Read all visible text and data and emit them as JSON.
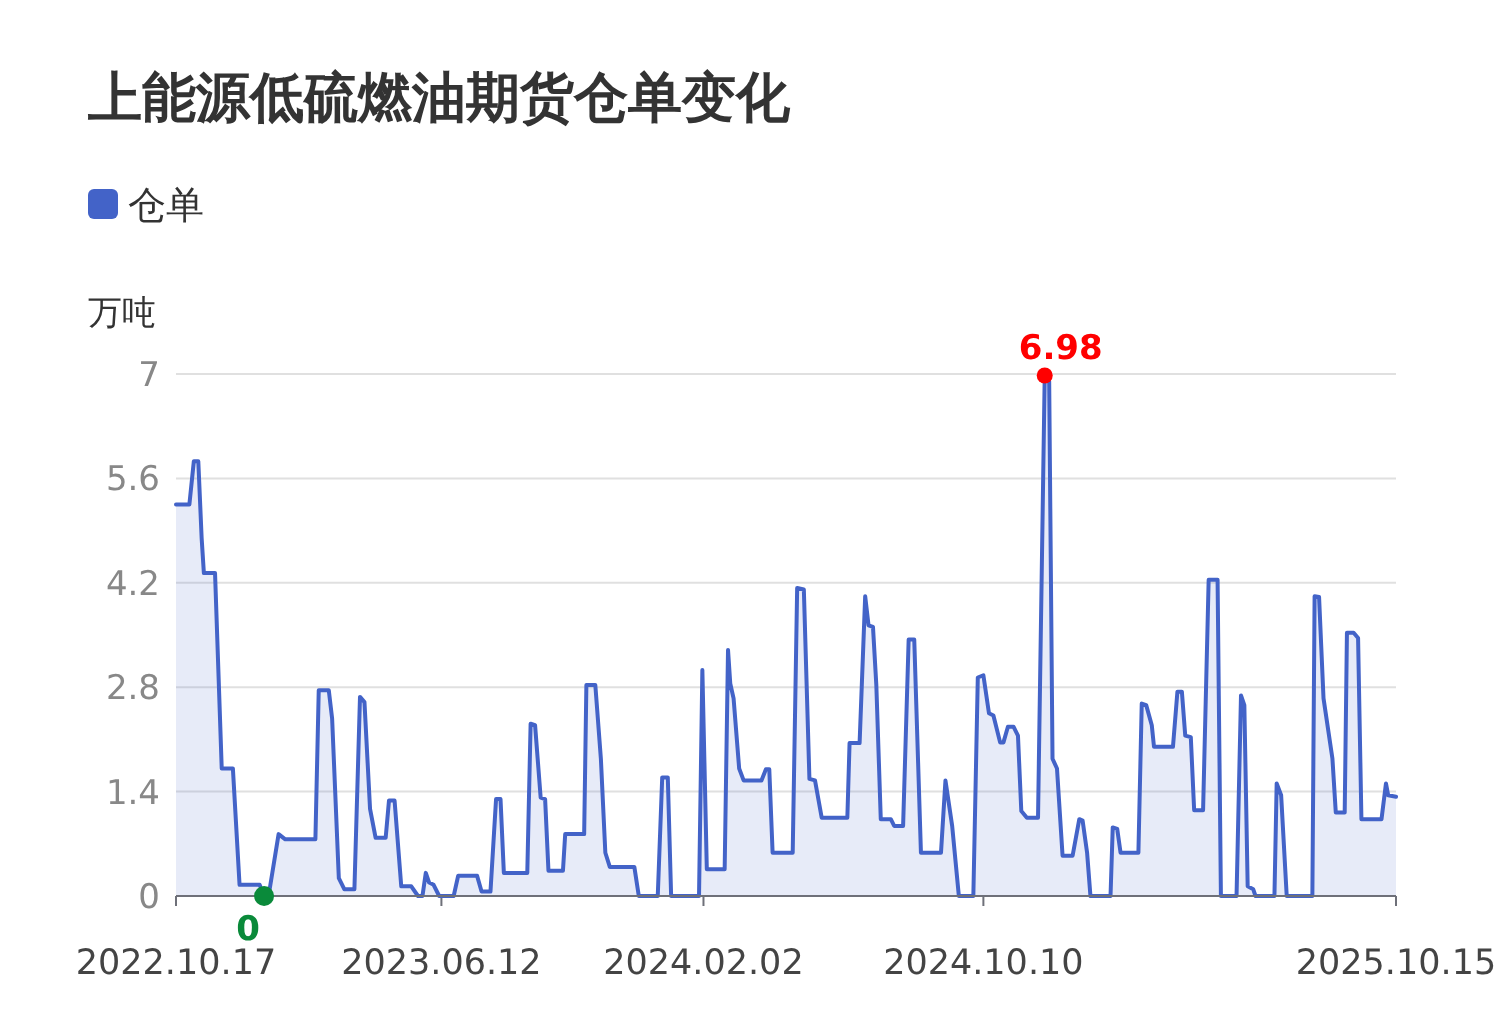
{
  "chart_data": {
    "type": "area",
    "title": "上能源低硫燃油期货仓单变化",
    "ylabel": "万吨",
    "x": [
      "2022-10-17",
      "2022-10-29",
      "2022-11-02",
      "2022-11-06",
      "2022-11-09",
      "2022-11-11",
      "2022-11-21",
      "2022-11-27",
      "2022-12-07",
      "2022-12-13",
      "2022-12-31",
      "2023-01-04",
      "2023-01-08",
      "2023-01-17",
      "2023-01-23",
      "2023-02-19",
      "2023-02-22",
      "2023-03-03",
      "2023-03-06",
      "2023-03-12",
      "2023-03-17",
      "2023-03-26",
      "2023-03-31",
      "2023-04-04",
      "2023-04-09",
      "2023-04-14",
      "2023-04-23",
      "2023-04-26",
      "2023-05-01",
      "2023-05-07",
      "2023-05-16",
      "2023-05-22",
      "2023-05-26",
      "2023-05-29",
      "2023-06-01",
      "2023-06-05",
      "2023-06-10",
      "2023-06-23",
      "2023-06-27",
      "2023-07-14",
      "2023-07-18",
      "2023-07-26",
      "2023-07-31",
      "2023-08-04",
      "2023-08-07",
      "2023-08-28",
      "2023-08-31",
      "2023-09-04",
      "2023-09-09",
      "2023-09-13",
      "2023-09-16",
      "2023-09-29",
      "2023-10-01",
      "2023-10-18",
      "2023-10-20",
      "2023-10-28",
      "2023-11-02",
      "2023-11-06",
      "2023-11-10",
      "2023-12-02",
      "2023-12-06",
      "2023-12-23",
      "2023-12-27",
      "2024-01-01",
      "2024-01-04",
      "2024-01-29",
      "2024-02-01",
      "2024-02-05",
      "2024-02-21",
      "2024-02-24",
      "2024-02-26",
      "2024-02-29",
      "2024-03-05",
      "2024-03-09",
      "2024-03-25",
      "2024-03-29",
      "2024-04-01",
      "2024-04-04",
      "2024-04-22",
      "2024-04-26",
      "2024-05-02",
      "2024-05-07",
      "2024-05-12",
      "2024-05-18",
      "2024-06-10",
      "2024-06-12",
      "2024-06-21",
      "2024-06-26",
      "2024-06-29",
      "2024-07-03",
      "2024-07-06",
      "2024-07-10",
      "2024-07-19",
      "2024-07-22",
      "2024-07-30",
      "2024-08-04",
      "2024-08-09",
      "2024-08-15",
      "2024-09-02",
      "2024-09-06",
      "2024-09-12",
      "2024-09-18",
      "2024-10-01",
      "2024-10-05",
      "2024-10-10",
      "2024-10-15",
      "2024-10-19",
      "2024-10-25",
      "2024-10-28",
      "2024-11-01",
      "2024-11-06",
      "2024-11-10",
      "2024-11-13",
      "2024-11-18",
      "2024-11-28",
      "2024-12-04",
      "2024-12-08",
      "2024-12-11",
      "2024-12-15",
      "2024-12-20",
      "2024-12-29",
      "2025-01-04",
      "2025-01-07",
      "2025-01-11",
      "2025-01-14",
      "2025-02-01",
      "2025-02-03",
      "2025-02-07",
      "2025-02-10",
      "2025-02-26",
      "2025-03-01",
      "2025-03-05",
      "2025-03-10",
      "2025-03-12",
      "2025-03-29",
      "2025-04-02",
      "2025-04-06",
      "2025-04-09",
      "2025-04-14",
      "2025-04-17",
      "2025-04-25",
      "2025-04-30",
      "2025-05-08",
      "2025-05-11",
      "2025-05-25",
      "2025-05-29",
      "2025-06-01",
      "2025-06-04",
      "2025-06-09",
      "2025-06-11",
      "2025-06-28",
      "2025-06-30",
      "2025-07-04",
      "2025-07-09",
      "2025-08-01",
      "2025-08-03",
      "2025-08-07",
      "2025-08-11",
      "2025-08-19",
      "2025-08-22",
      "2025-08-30",
      "2025-09-01",
      "2025-09-07",
      "2025-09-11",
      "2025-09-14",
      "2025-10-02",
      "2025-10-06",
      "2025-10-08",
      "2025-10-15"
    ],
    "series": [
      {
        "name": "仓单",
        "color": "#4363c8",
        "values": [
          5.25,
          5.25,
          5.83,
          5.83,
          4.8,
          4.33,
          4.33,
          1.71,
          1.71,
          0.15,
          0.15,
          0,
          0,
          0.83,
          0.76,
          0.76,
          2.76,
          2.76,
          2.38,
          0.24,
          0.09,
          0.09,
          2.67,
          2.6,
          1.17,
          0.78,
          0.78,
          1.28,
          1.28,
          0.13,
          0.13,
          0,
          0,
          0.31,
          0.18,
          0.15,
          0,
          0,
          0.27,
          0.27,
          0.06,
          0.06,
          1.3,
          1.3,
          0.31,
          0.31,
          2.31,
          2.29,
          1.32,
          1.3,
          0.34,
          0.34,
          0.83,
          0.83,
          2.83,
          2.83,
          1.84,
          0.58,
          0.39,
          0.39,
          0,
          0,
          1.59,
          1.59,
          0,
          0,
          3.03,
          0.36,
          0.36,
          3.3,
          2.85,
          2.65,
          1.71,
          1.55,
          1.55,
          1.7,
          1.7,
          0.58,
          0.58,
          4.13,
          4.11,
          1.57,
          1.55,
          1.05,
          1.05,
          2.05,
          2.05,
          4.02,
          3.63,
          3.61,
          2.83,
          1.03,
          1.03,
          0.94,
          0.94,
          3.44,
          3.44,
          0.58,
          0.58,
          1.55,
          0.94,
          0,
          0,
          2.93,
          2.96,
          2.45,
          2.42,
          2.06,
          2.06,
          2.27,
          2.27,
          2.15,
          1.14,
          1.05,
          1.05,
          6.98,
          6.9,
          1.84,
          1.71,
          0.54,
          0.54,
          1.03,
          1.01,
          0.58,
          0,
          0,
          0.92,
          0.9,
          0.58,
          0.58,
          2.58,
          2.56,
          2.29,
          2.0,
          2.0,
          2.74,
          2.74,
          2.15,
          2.13,
          1.15,
          1.15,
          4.24,
          4.24,
          0,
          0,
          2.69,
          2.56,
          0.13,
          0.09,
          0,
          0,
          1.51,
          1.35,
          0,
          0,
          4.02,
          4.01,
          2.65,
          1.84,
          1.12,
          1.12,
          3.53,
          3.53,
          3.46,
          1.03,
          1.03,
          1.51,
          1.35,
          1.33
        ]
      }
    ],
    "xlim": [
      "2022-10-17",
      "2025-10-15"
    ],
    "xticks": [
      {
        "value": "2022-10-17",
        "label": "2022.10.17"
      },
      {
        "value": "2023-06-12",
        "label": "2023.06.12"
      },
      {
        "value": "2024-02-02",
        "label": "2024.02.02"
      },
      {
        "value": "2024-10-10",
        "label": "2024.10.10"
      },
      {
        "value": "2025-10-15",
        "label": "2025.10.15"
      }
    ],
    "ylim": [
      0,
      7
    ],
    "yticks": [
      0,
      1.4,
      2.8,
      4.2,
      5.6,
      7
    ],
    "grid": "y",
    "legend": "top left",
    "annotations": [
      {
        "text": "6.98",
        "x": "2024-12-04",
        "y": 6.98
      },
      {
        "text": "0",
        "x": "2023-01-04",
        "y": 0
      }
    ]
  }
}
